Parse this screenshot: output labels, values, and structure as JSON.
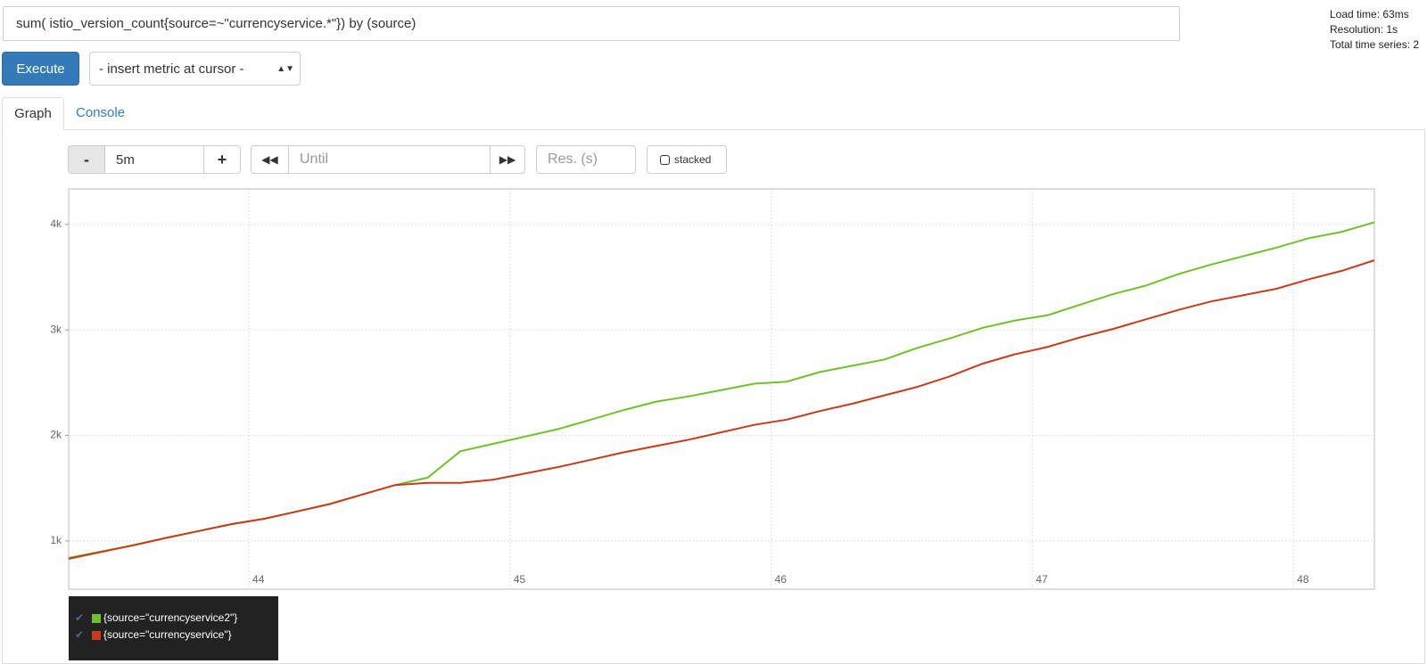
{
  "ui": {
    "query": "sum( istio_version_count{source=~\"currencyservice.*\"}) by (source)",
    "stats": [
      "Load time: 63ms",
      "Resolution: 1s",
      "Total time series: 2"
    ],
    "execute": "Execute",
    "insert_metric": "- insert metric at cursor -",
    "tabs": [
      "Graph",
      "Console"
    ],
    "minus": "-",
    "range": "5m",
    "plus": "+",
    "until": "Until",
    "resolution": "Res. (s)",
    "stacked": "stacked"
  },
  "chart_data": {
    "type": "line",
    "x": [
      43.31,
      43.435,
      43.56,
      43.685,
      43.81,
      43.935,
      44.06,
      44.185,
      44.31,
      44.435,
      44.56,
      44.685,
      44.81,
      44.935,
      45.06,
      45.185,
      45.31,
      45.435,
      45.56,
      45.685,
      45.81,
      45.935,
      46.06,
      46.185,
      46.31,
      46.435,
      46.56,
      46.685,
      46.81,
      46.935,
      47.06,
      47.185,
      47.31,
      47.435,
      47.56,
      47.685,
      47.81,
      47.935,
      48.06,
      48.185,
      48.31
    ],
    "series": [
      {
        "name": "{source=\"currencyservice2\"}",
        "color": "#6fc12a",
        "values": [
          840,
          900,
          960,
          1030,
          1095,
          1160,
          1210,
          1280,
          1350,
          1440,
          1530,
          1600,
          1850,
          1920,
          1990,
          2060,
          2150,
          2240,
          2320,
          2370,
          2430,
          2490,
          2510,
          2600,
          2660,
          2720,
          2830,
          2920,
          3020,
          3090,
          3140,
          3240,
          3340,
          3420,
          3530,
          3620,
          3700,
          3780,
          3870,
          3930,
          4020
        ]
      },
      {
        "name": "{source=\"currencyservice\"}",
        "color": "#c9391b",
        "values": [
          830,
          895,
          960,
          1030,
          1095,
          1160,
          1210,
          1280,
          1350,
          1440,
          1530,
          1550,
          1550,
          1580,
          1640,
          1700,
          1770,
          1840,
          1900,
          1960,
          2030,
          2100,
          2150,
          2230,
          2300,
          2380,
          2460,
          2560,
          2680,
          2770,
          2840,
          2930,
          3010,
          3100,
          3190,
          3270,
          3330,
          3390,
          3480,
          3560,
          3660
        ]
      }
    ],
    "xlim": [
      43.31,
      48.31
    ],
    "xticks": [
      44,
      45,
      46,
      47,
      48
    ],
    "ylim": [
      543,
      4336
    ],
    "yticks": [
      {
        "value": 1000,
        "label": "1k"
      },
      {
        "value": 2000,
        "label": "2k"
      },
      {
        "value": 3000,
        "label": "3k"
      },
      {
        "value": 4000,
        "label": "4k"
      }
    ],
    "grid": true
  }
}
